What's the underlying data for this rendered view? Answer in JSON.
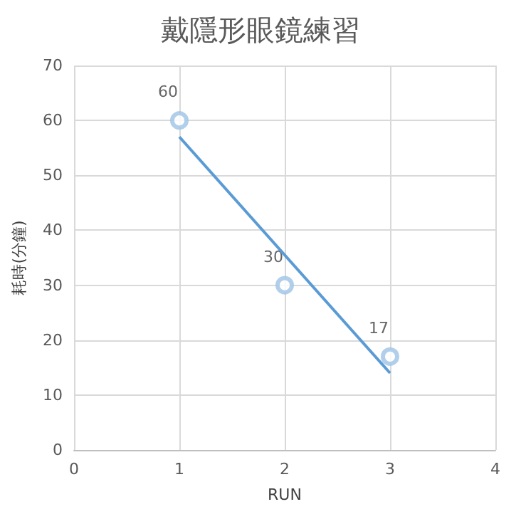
{
  "chart_data": {
    "type": "scatter",
    "title": "戴隱形眼鏡練習",
    "xlabel": "RUN",
    "ylabel": "耗時(分鐘)",
    "series": [
      {
        "color": "#9dc3e6",
        "x": [
          1,
          2,
          3
        ],
        "values": [
          60,
          30,
          17
        ],
        "value_labels": [
          "60",
          "30",
          "17"
        ]
      },
      {
        "type": "line",
        "color": "#5b9bd5",
        "x": [
          1,
          3
        ],
        "values": [
          57,
          14
        ],
        "marker": "none"
      }
    ],
    "xlim": [
      0,
      4
    ],
    "xticks": [
      0,
      1,
      2,
      3,
      4
    ],
    "ylim": [
      0,
      70
    ],
    "yticks": [
      0,
      10,
      20,
      30,
      40,
      50,
      60,
      70
    ],
    "grid": true,
    "marker": "circle"
  }
}
